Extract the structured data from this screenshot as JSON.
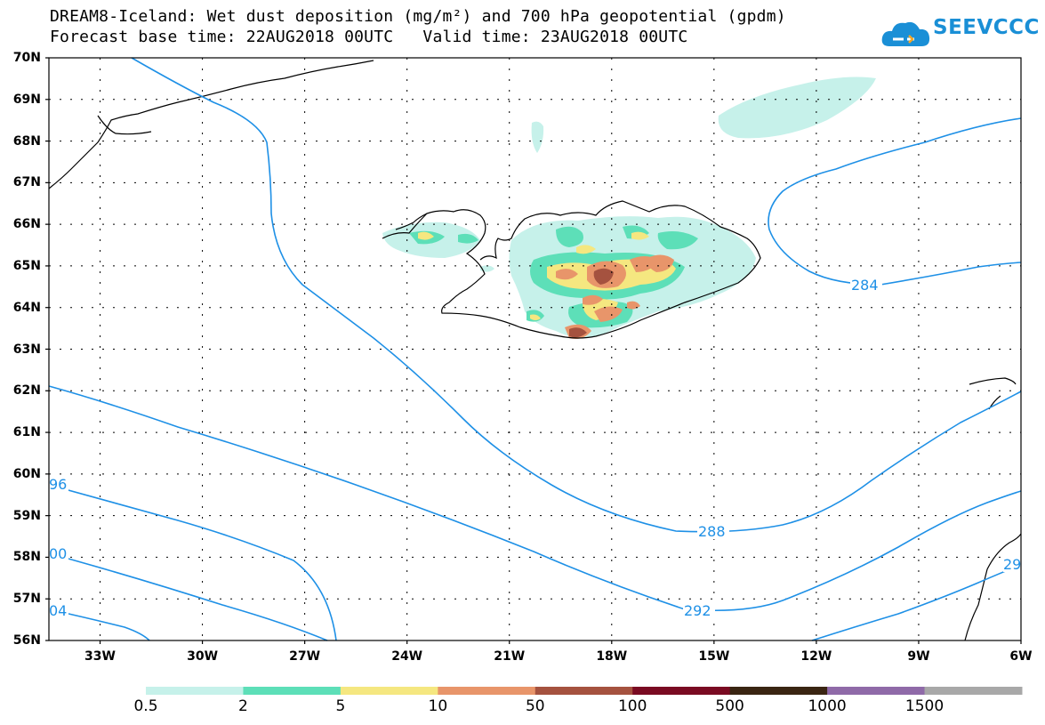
{
  "title": {
    "line1": "DREAM8-Iceland: Wet dust deposition (mg/m²) and 700 hPa geopotential (gpdm)",
    "line2": "Forecast base time: 22AUG2018 00UTC   Valid time: 23AUG2018 00UTC"
  },
  "logo": {
    "text": "SEEVCCC",
    "icon": "cloud-icon"
  },
  "map": {
    "lon_range": [
      -34.5,
      -6
    ],
    "lat_range": [
      56,
      70
    ],
    "lat_labels": [
      "70N",
      "69N",
      "68N",
      "67N",
      "66N",
      "65N",
      "64N",
      "63N",
      "62N",
      "61N",
      "60N",
      "59N",
      "58N",
      "57N",
      "56N"
    ],
    "lon_labels": [
      "33W",
      "30W",
      "27W",
      "24W",
      "21W",
      "18W",
      "15W",
      "12W",
      "9W",
      "6W"
    ],
    "contour_labels": [
      "284",
      "288",
      "292",
      "96",
      "00",
      "04",
      "29"
    ],
    "contour_color": "#1e90e6"
  },
  "colorbar": {
    "labels": [
      "0.5",
      "2",
      "5",
      "10",
      "50",
      "100",
      "500",
      "1000",
      "1500"
    ],
    "colors": [
      "#c6f1ea",
      "#5ddfb8",
      "#f5e780",
      "#e8956a",
      "#a5523f",
      "#7a0b22",
      "#3a2512",
      "#8f6aa8",
      "#a8a8a8"
    ]
  }
}
